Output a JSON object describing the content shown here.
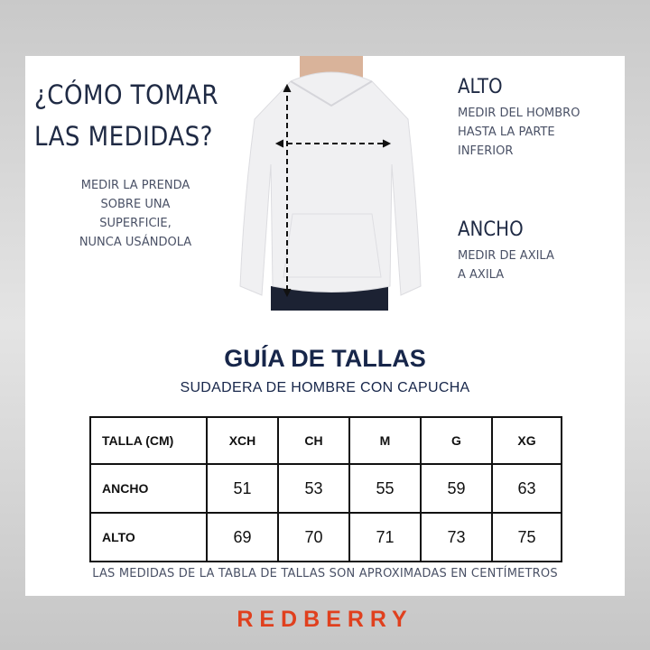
{
  "how_to": {
    "title_line1": "¿CÓMO TOMAR",
    "title_line2": "LAS MEDIDAS?",
    "note": [
      "MEDIR LA PRENDA",
      "SOBRE UNA",
      "SUPERFICIE,",
      "NUNCA USÁNDOLA"
    ]
  },
  "alto": {
    "heading": "ALTO",
    "text": [
      "MEDIR DEL HOMBRO",
      "HASTA LA PARTE",
      "INFERIOR"
    ]
  },
  "ancho": {
    "heading": "ANCHO",
    "text": [
      "MEDIR DE AXILA",
      "A AXILA"
    ]
  },
  "guide": {
    "title": "GUÍA DE TALLAS",
    "subtitle": "SUDADERA DE HOMBRE CON CAPUCHA"
  },
  "table": {
    "headers": [
      "TALLA (CM)",
      "XCH",
      "CH",
      "M",
      "G",
      "XG"
    ],
    "rows": [
      {
        "label": "ANCHO",
        "values": [
          "51",
          "53",
          "55",
          "59",
          "63"
        ]
      },
      {
        "label": "ALTO",
        "values": [
          "69",
          "70",
          "71",
          "73",
          "75"
        ]
      }
    ]
  },
  "footnote": "LAS MEDIDAS DE LA TABLA DE TALLAS SON APROXIMADAS EN CENTÍMETROS",
  "brand": {
    "name": "REDBERRY",
    "color": "#e0401e"
  }
}
